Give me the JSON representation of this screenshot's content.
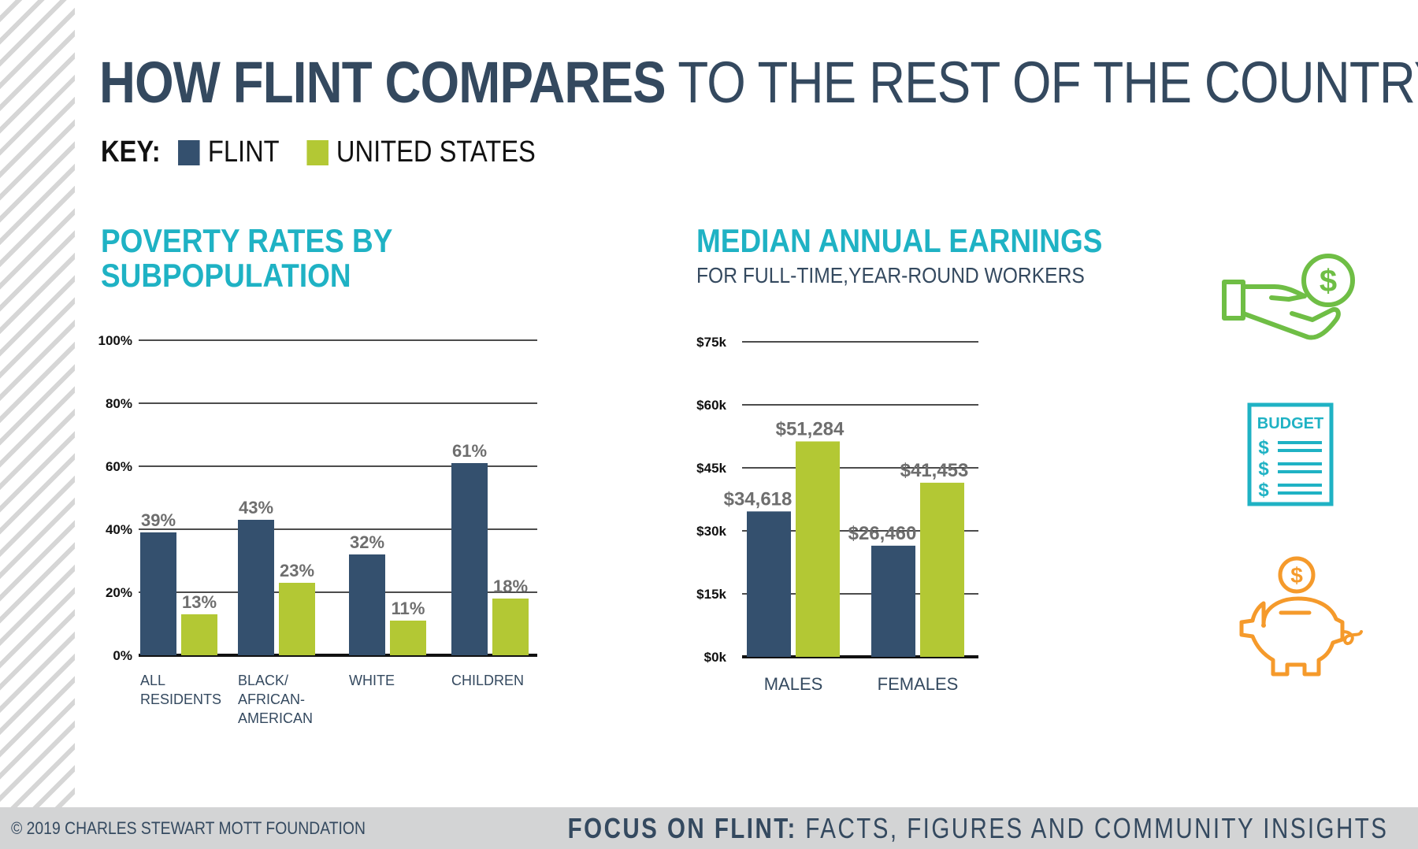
{
  "header": {
    "title_bold": "HOW FLINT COMPARES",
    "title_rest": "TO THE REST OF THE COUNTRY",
    "key_label": "KEY:",
    "key_items": [
      {
        "label": "FLINT",
        "color": "#34506e"
      },
      {
        "label": "UNITED STATES",
        "color": "#b3c834"
      }
    ]
  },
  "poverty": {
    "title_line1": "POVERTY RATES BY",
    "title_line2": "SUBPOPULATION"
  },
  "earnings": {
    "title": "MEDIAN ANNUAL EARNINGS",
    "subtitle": "FOR FULL-TIME,YEAR-ROUND WORKERS"
  },
  "chart_data": [
    {
      "type": "bar",
      "title": "POVERTY RATES BY SUBPOPULATION",
      "categories": [
        [
          "ALL",
          "RESIDENTS"
        ],
        [
          "BLACK/",
          "AFRICAN-",
          "AMERICAN"
        ],
        [
          "WHITE"
        ],
        [
          "CHILDREN"
        ]
      ],
      "series": [
        {
          "name": "FLINT",
          "values": [
            39,
            43,
            32,
            61
          ],
          "labels": [
            "39%",
            "43%",
            "32%",
            "61%"
          ],
          "color": "#34506e"
        },
        {
          "name": "UNITED STATES",
          "values": [
            13,
            23,
            11,
            18
          ],
          "labels": [
            "13%",
            "23%",
            "11%",
            "18%"
          ],
          "color": "#b3c834"
        }
      ],
      "yticks": [
        "0%",
        "20%",
        "40%",
        "60%",
        "80%",
        "100%"
      ],
      "ylim": [
        0,
        100
      ],
      "grid": true
    },
    {
      "type": "bar",
      "title": "MEDIAN ANNUAL EARNINGS",
      "categories": [
        [
          "MALES"
        ],
        [
          "FEMALES"
        ]
      ],
      "series": [
        {
          "name": "FLINT",
          "values": [
            34618,
            26460
          ],
          "labels": [
            "$34,618",
            "$26,460"
          ],
          "color": "#34506e"
        },
        {
          "name": "UNITED STATES",
          "values": [
            51284,
            41453
          ],
          "labels": [
            "$51,284",
            "$41,453"
          ],
          "color": "#b3c834"
        }
      ],
      "yticks": [
        "$0k",
        "$15k",
        "$30k",
        "$45k",
        "$60k",
        "$75k"
      ],
      "ylim": [
        0,
        75000
      ],
      "grid": true
    }
  ],
  "icons": {
    "hand": "hand-dollar-icon",
    "budget": "budget-sheet-icon",
    "budget_label": "BUDGET",
    "piggy": "piggy-bank-icon",
    "hand_color": "#6fbe45",
    "budget_color": "#1fb2c4",
    "piggy_color": "#f59a2b",
    "dollar": "$"
  },
  "footer": {
    "copyright": "© 2019 CHARLES STEWART MOTT FOUNDATION",
    "brand_bold": "FOCUS ON FLINT:",
    "brand_rest": "FACTS, FIGURES AND COMMUNITY INSIGHTS"
  }
}
